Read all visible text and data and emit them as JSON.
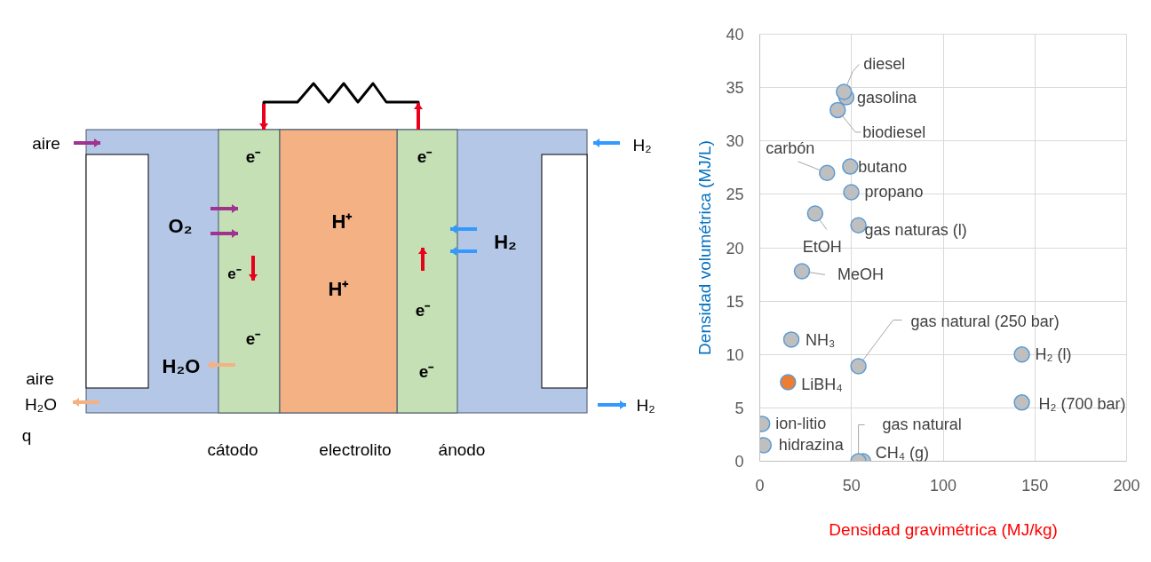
{
  "chart_data": [
    {
      "type": "other",
      "annotations": [
        "aire",
        "H₂",
        "e⁻",
        "e⁻",
        "O₂",
        "H⁺",
        "H₂",
        "e⁻",
        "H⁺",
        "e⁻",
        "e⁻",
        "H₂O",
        "e⁻",
        "aire",
        "H₂O",
        "H₂",
        "q",
        "cátodo",
        "electrolito",
        "ánodo"
      ]
    },
    {
      "type": "scatter",
      "xlabel": "Densidad gravimétrica (MJ/kg)",
      "ylabel": "Densidad volumétrica (MJ/L)",
      "x": [
        45.9,
        47.2,
        42.5,
        36.7,
        49.3,
        49.9,
        53.8,
        30.2,
        23.0,
        17.2,
        15.4,
        53.8,
        142.9,
        142.9,
        1.3,
        2.1,
        53.8,
        56.3
      ],
      "values": [
        34.6,
        34.1,
        32.9,
        27.0,
        27.6,
        25.2,
        22.1,
        23.2,
        17.8,
        11.4,
        7.4,
        8.9,
        10.0,
        5.5,
        3.5,
        1.5,
        0,
        0
      ],
      "colors": [
        "#bfbfbf",
        "#bfbfbf",
        "#bfbfbf",
        "#bfbfbf",
        "#bfbfbf",
        "#bfbfbf",
        "#bfbfbf",
        "#bfbfbf",
        "#bfbfbf",
        "#bfbfbf",
        "#ed7d31",
        "#bfbfbf",
        "#bfbfbf",
        "#bfbfbf",
        "#bfbfbf",
        "#bfbfbf",
        "#bfbfbf",
        "#bfbfbf"
      ],
      "annotations": [
        {
          "text": "diesel",
          "x": 45.9,
          "y": 34.6
        },
        {
          "text": "gasolina",
          "x": 47.2,
          "y": 34.1
        },
        {
          "text": "biodiesel",
          "x": 42.5,
          "y": 32.9
        },
        {
          "text": "carbón",
          "x": 36.7,
          "y": 27.0
        },
        {
          "text": "butano",
          "x": 49.3,
          "y": 27.6
        },
        {
          "text": "propano",
          "x": 49.9,
          "y": 25.2
        },
        {
          "text": "gas naturas (l)",
          "x": 53.8,
          "y": 22.1
        },
        {
          "text": "EtOH",
          "x": 30.2,
          "y": 23.2
        },
        {
          "text": "MeOH",
          "x": 23.0,
          "y": 17.8
        },
        {
          "text": "NH₃",
          "x": 17.2,
          "y": 11.4
        },
        {
          "text": "LiBH₄",
          "x": 15.4,
          "y": 7.4
        },
        {
          "text": "gas natural (250 bar)",
          "x": 53.8,
          "y": 8.9
        },
        {
          "text": "H₂ (l)",
          "x": 142.9,
          "y": 10.0
        },
        {
          "text": "H₂ (700 bar)",
          "x": 142.9,
          "y": 5.5
        },
        {
          "text": "ion-litio",
          "x": 1.3,
          "y": 3.5
        },
        {
          "text": "hidrazina",
          "x": 2.1,
          "y": 1.5
        },
        {
          "text": "gas natural",
          "x": 53.8,
          "y": 0
        },
        {
          "text": "CH₄ (g)",
          "x": 56.3,
          "y": 0
        }
      ],
      "xlim": [
        0,
        200
      ],
      "ylim": [
        0,
        40
      ],
      "xticks": [
        0,
        50,
        100,
        150,
        200
      ],
      "yticks": [
        0,
        5,
        10,
        15,
        20,
        25,
        30,
        35,
        40
      ],
      "grid": true,
      "marker": "circle"
    }
  ]
}
